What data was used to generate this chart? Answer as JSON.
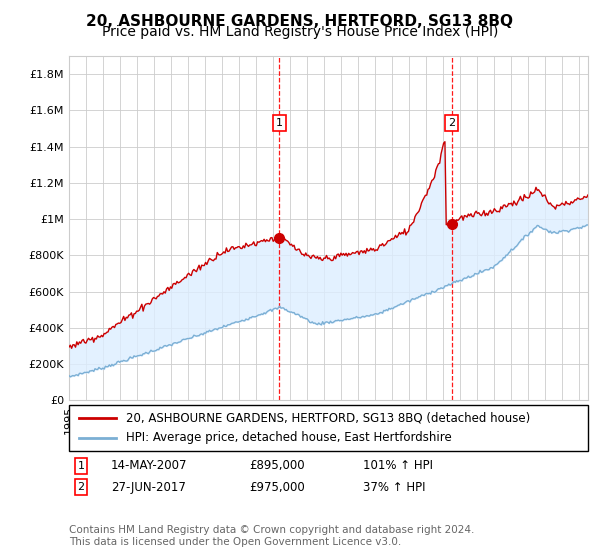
{
  "title": "20, ASHBOURNE GARDENS, HERTFORD, SG13 8BQ",
  "subtitle": "Price paid vs. HM Land Registry's House Price Index (HPI)",
  "ylabel_ticks": [
    "£0",
    "£200K",
    "£400K",
    "£600K",
    "£800K",
    "£1M",
    "£1.2M",
    "£1.4M",
    "£1.6M",
    "£1.8M"
  ],
  "ytick_values": [
    0,
    200000,
    400000,
    600000,
    800000,
    1000000,
    1200000,
    1400000,
    1600000,
    1800000
  ],
  "ylim": [
    0,
    1900000
  ],
  "xlim_start": 1995.0,
  "xlim_end": 2025.5,
  "marker1_x": 2007.37,
  "marker1_y": 895000,
  "marker2_x": 2017.48,
  "marker2_y": 975000,
  "marker1_label": "1",
  "marker2_label": "2",
  "annotation1_date": "14-MAY-2007",
  "annotation1_price": "£895,000",
  "annotation1_hpi": "101% ↑ HPI",
  "annotation2_date": "27-JUN-2017",
  "annotation2_price": "£975,000",
  "annotation2_hpi": "37% ↑ HPI",
  "line1_color": "#cc0000",
  "line2_color": "#7bafd4",
  "shading_color": "#ddeeff",
  "grid_color": "#cccccc",
  "background_color": "#ffffff",
  "legend_line1": "20, ASHBOURNE GARDENS, HERTFORD, SG13 8BQ (detached house)",
  "legend_line2": "HPI: Average price, detached house, East Hertfordshire",
  "footnote": "Contains HM Land Registry data © Crown copyright and database right 2024.\nThis data is licensed under the Open Government Licence v3.0.",
  "title_fontsize": 11,
  "subtitle_fontsize": 10,
  "tick_fontsize": 8,
  "legend_fontsize": 8.5,
  "footnote_fontsize": 7.5
}
